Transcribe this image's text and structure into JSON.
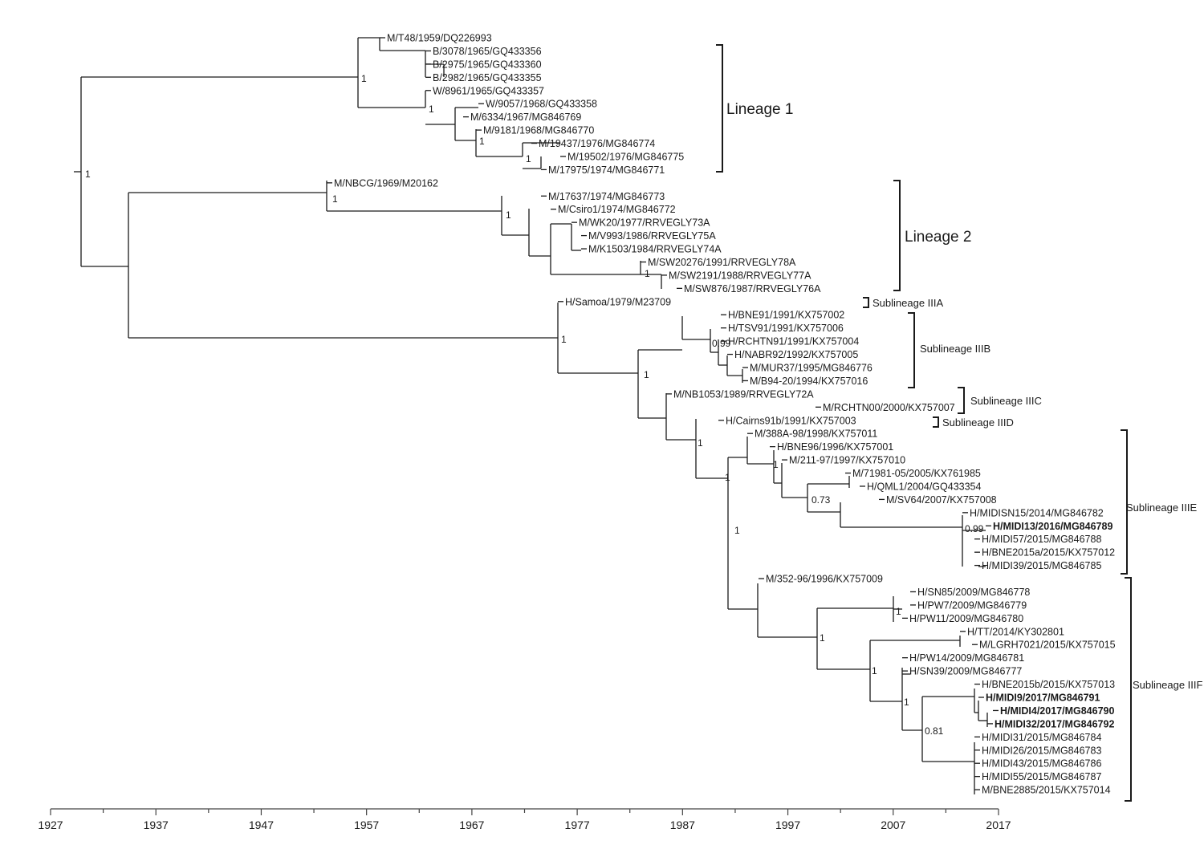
{
  "taxa": [
    {
      "id": "t1",
      "label": "M/T48/1959/DQ226993"
    },
    {
      "id": "t2",
      "label": "B/3078/1965/GQ433356"
    },
    {
      "id": "t3",
      "label": "B/2975/1965/GQ433360"
    },
    {
      "id": "t4",
      "label": "B/2982/1965/GQ433355"
    },
    {
      "id": "t5",
      "label": "W/8961/1965/GQ433357"
    },
    {
      "id": "t6",
      "label": "W/9057/1968/GQ433358"
    },
    {
      "id": "t7",
      "label": "M/6334/1967/MG846769"
    },
    {
      "id": "t8",
      "label": "M/9181/1968/MG846770"
    },
    {
      "id": "t9",
      "label": "M/19437/1976/MG846774"
    },
    {
      "id": "t10",
      "label": "M/19502/1976/MG846775"
    },
    {
      "id": "t11",
      "label": "M/17975/1974/MG846771"
    },
    {
      "id": "t12",
      "label": "M/NBCG/1969/M20162"
    },
    {
      "id": "t13",
      "label": "M/17637/1974/MG846773"
    },
    {
      "id": "t14",
      "label": "M/Csiro1/1974/MG846772"
    },
    {
      "id": "t15",
      "label": "M/WK20/1977/RRVEGLY73A"
    },
    {
      "id": "t16",
      "label": "M/V993/1986/RRVEGLY75A"
    },
    {
      "id": "t17",
      "label": "M/K1503/1984/RRVEGLY74A"
    },
    {
      "id": "t18",
      "label": "M/SW20276/1991/RRVEGLY78A"
    },
    {
      "id": "t19",
      "label": "M/SW2191/1988/RRVEGLY77A"
    },
    {
      "id": "t20",
      "label": "M/SW876/1987/RRVEGLY76A"
    },
    {
      "id": "t21",
      "label": "H/Samoa/1979/M23709"
    },
    {
      "id": "t22",
      "label": "H/BNE91/1991/KX757002"
    },
    {
      "id": "t23",
      "label": "H/TSV91/1991/KX757006"
    },
    {
      "id": "t24",
      "label": "H/RCHTN91/1991/KX757004"
    },
    {
      "id": "t25",
      "label": "H/NABR92/1992/KX757005"
    },
    {
      "id": "t26",
      "label": "M/MUR37/1995/MG846776"
    },
    {
      "id": "t27",
      "label": "M/B94-20/1994/KX757016"
    },
    {
      "id": "t28",
      "label": "M/NB1053/1989/RRVEGLY72A"
    },
    {
      "id": "t29",
      "label": "M/RCHTN00/2000/KX757007"
    },
    {
      "id": "t30",
      "label": "H/Cairns91b/1991/KX757003"
    },
    {
      "id": "t31",
      "label": "M/388A-98/1998/KX757011"
    },
    {
      "id": "t32",
      "label": "H/BNE96/1996/KX757001"
    },
    {
      "id": "t33",
      "label": "M/211-97/1997/KX757010"
    },
    {
      "id": "t34",
      "label": "M/71981-05/2005/KX761985"
    },
    {
      "id": "t35",
      "label": "H/QML1/2004/GQ433354"
    },
    {
      "id": "t36",
      "label": "M/SV64/2007/KX757008"
    },
    {
      "id": "t37",
      "label": "H/MIDISN15/2014/MG846782"
    },
    {
      "id": "t38",
      "label": "H/MIDI13/2016/MG846789",
      "bold": true
    },
    {
      "id": "t39",
      "label": "H/MIDI57/2015/MG846788"
    },
    {
      "id": "t40",
      "label": "H/BNE2015a/2015/KX757012"
    },
    {
      "id": "t41",
      "label": "H/MIDI39/2015/MG846785"
    },
    {
      "id": "t42",
      "label": "M/352-96/1996/KX757009"
    },
    {
      "id": "t43",
      "label": "H/SN85/2009/MG846778"
    },
    {
      "id": "t44",
      "label": "H/PW7/2009/MG846779"
    },
    {
      "id": "t45",
      "label": "H/PW11/2009/MG846780"
    },
    {
      "id": "t46",
      "label": "H/TT/2014/KY302801"
    },
    {
      "id": "t47",
      "label": "M/LGRH7021/2015/KX757015"
    },
    {
      "id": "t48",
      "label": "H/PW14/2009/MG846781"
    },
    {
      "id": "t49",
      "label": "H/SN39/2009/MG846777"
    },
    {
      "id": "t50",
      "label": "H/BNE2015b/2015/KX757013"
    },
    {
      "id": "t51",
      "label": "H/MIDI9/2017/MG846791",
      "bold": true
    },
    {
      "id": "t52",
      "label": "H/MIDI4/2017/MG846790",
      "bold": true
    },
    {
      "id": "t53",
      "label": "H/MIDI32/2017/MG846792",
      "bold": true
    },
    {
      "id": "t54",
      "label": "H/MIDI31/2015/MG846784"
    },
    {
      "id": "t55",
      "label": "H/MIDI26/2015/MG846783"
    },
    {
      "id": "t56",
      "label": "H/MIDI43/2015/MG846786"
    },
    {
      "id": "t57",
      "label": "H/MIDI55/2015/MG846787"
    },
    {
      "id": "t58",
      "label": "M/BNE2885/2015/KX757014"
    }
  ],
  "support_values": [
    "1",
    "1",
    "1",
    "1",
    "1",
    "1",
    "1",
    "1",
    "1",
    "0.99",
    "1",
    "1",
    "1",
    "1",
    "0.73",
    "1",
    "0.99",
    "1",
    "1",
    "1",
    "0.81"
  ],
  "clades": {
    "lineage1": "Lineage 1",
    "lineage2": "Lineage 2",
    "sub_iiia": "Sublineage IIIA",
    "sub_iiib": "Sublineage IIIB",
    "sub_iiic": "Sublineage IIIC",
    "sub_iiid": "Sublineage IIID",
    "sub_iiie": "Sublineage IIIE",
    "sub_iiif": "Sublineage IIIF"
  },
  "axis": {
    "min_year": 1927,
    "max_year": 2017,
    "ticks": [
      "1927",
      "1937",
      "1947",
      "1957",
      "1967",
      "1977",
      "1987",
      "1997",
      "2007",
      "2017"
    ]
  }
}
